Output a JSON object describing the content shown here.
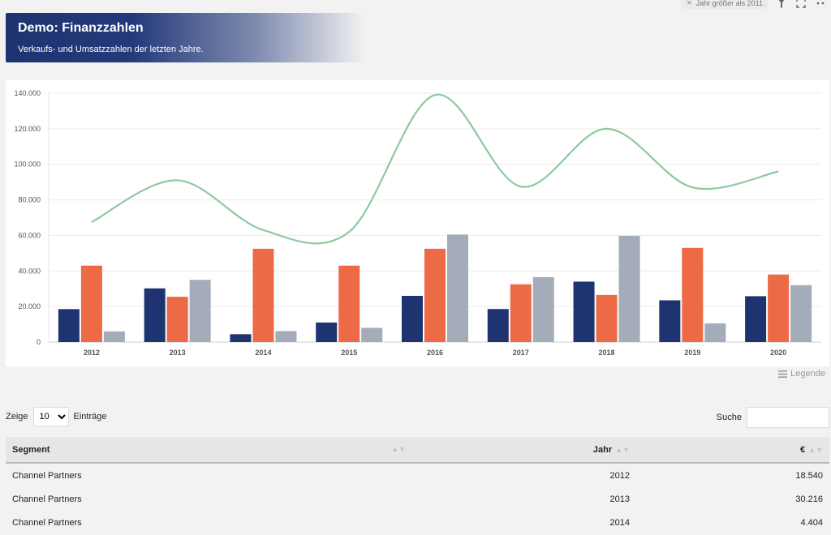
{
  "toolbar": {
    "filter_label": "Jahr größer als 2011",
    "filter_remove_icon": "close-icon",
    "filter_icon": "filter-icon",
    "fullscreen_icon": "expand-icon",
    "menu_icon": "more-icon"
  },
  "header": {
    "title": "Demo: Finanzzahlen",
    "subtitle": "Verkaufs- und Umsatzzahlen der letzten Jahre."
  },
  "colors": {
    "navy": "#1e3470",
    "orange": "#ec6a46",
    "grey": "#a4abb9",
    "green": "#8cc9a0"
  },
  "chart_data": {
    "type": "bar",
    "categories": [
      "2012",
      "2013",
      "2014",
      "2015",
      "2016",
      "2017",
      "2018",
      "2019",
      "2020"
    ],
    "ylim": [
      0,
      140000
    ],
    "yticks": [
      0,
      20000,
      40000,
      60000,
      80000,
      100000,
      120000,
      140000
    ],
    "ytick_labels": [
      "0",
      "20.000",
      "40.000",
      "60.000",
      "80.000",
      "100.000",
      "120.000",
      "140.000"
    ],
    "grid": true,
    "series": [
      {
        "type": "bar",
        "color": "#1e3470",
        "values": [
          18540,
          30216,
          4404,
          11000,
          26000,
          18600,
          34000,
          23500,
          25800
        ]
      },
      {
        "type": "bar",
        "color": "#ec6a46",
        "values": [
          43000,
          25500,
          52500,
          43000,
          52500,
          32500,
          26500,
          53000,
          38000
        ]
      },
      {
        "type": "bar",
        "color": "#a4abb9",
        "values": [
          6000,
          35000,
          6200,
          8000,
          60500,
          36500,
          59800,
          10500,
          32000
        ]
      },
      {
        "type": "line",
        "color": "#8cc9a0",
        "values": [
          67500,
          91000,
          63000,
          62000,
          139000,
          87500,
          120000,
          87000,
          96000
        ]
      }
    ]
  },
  "legend_toggle": {
    "label": "Legende",
    "icon": "menu-lines-icon"
  },
  "entries": {
    "prefix": "Zeige",
    "selected": "10",
    "suffix": "Einträge"
  },
  "search": {
    "label": "Suche",
    "value": ""
  },
  "table": {
    "headers": {
      "segment": "Segment",
      "year": "Jahr",
      "amount": "€"
    },
    "rows": [
      {
        "segment": "Channel Partners",
        "year": "2012",
        "amount": "18.540"
      },
      {
        "segment": "Channel Partners",
        "year": "2013",
        "amount": "30.216"
      },
      {
        "segment": "Channel Partners",
        "year": "2014",
        "amount": "4.404"
      }
    ]
  }
}
